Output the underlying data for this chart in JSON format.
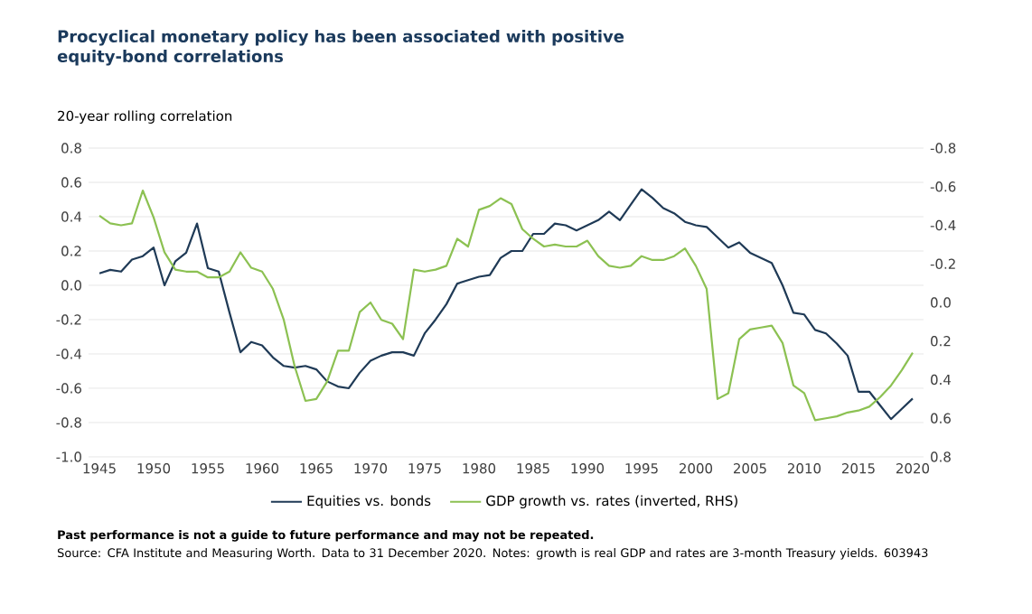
{
  "chart_data": {
    "type": "line",
    "title": "Procyclical monetary policy has been associated with positive equity-bond correlations",
    "ylabel": "20-year rolling correlation",
    "annotations": [
      "Past performance is not a guide to future performance and may not be repeated.",
      "Source: CFA Institute and Measuring Worth. Data to 31 December 2020. Notes: growth is real GDP and rates are 3-month Treasury yields. 603943"
    ],
    "x": [
      1945,
      1946,
      1947,
      1948,
      1949,
      1950,
      1951,
      1952,
      1953,
      1954,
      1955,
      1956,
      1957,
      1958,
      1959,
      1960,
      1961,
      1962,
      1963,
      1964,
      1965,
      1966,
      1967,
      1968,
      1969,
      1970,
      1971,
      1972,
      1973,
      1974,
      1975,
      1976,
      1977,
      1978,
      1979,
      1980,
      1981,
      1982,
      1983,
      1984,
      1985,
      1986,
      1987,
      1988,
      1989,
      1990,
      1991,
      1992,
      1993,
      1994,
      1995,
      1996,
      1997,
      1998,
      1999,
      2000,
      2001,
      2002,
      2003,
      2004,
      2005,
      2006,
      2007,
      2008,
      2009,
      2010,
      2011,
      2012,
      2013,
      2014,
      2015,
      2016,
      2017,
      2018,
      2019,
      2020
    ],
    "series": [
      {
        "name": "Equities vs. bonds",
        "color": "#1f3a56",
        "values": [
          0.07,
          0.09,
          0.08,
          0.15,
          0.17,
          0.22,
          0.0,
          0.14,
          0.19,
          0.36,
          0.1,
          0.08,
          -0.16,
          -0.39,
          -0.33,
          -0.35,
          -0.42,
          -0.47,
          -0.48,
          -0.47,
          -0.49,
          -0.56,
          -0.59,
          -0.6,
          -0.51,
          -0.44,
          -0.41,
          -0.39,
          -0.39,
          -0.41,
          -0.28,
          -0.2,
          -0.11,
          0.01,
          0.03,
          0.05,
          0.06,
          0.16,
          0.2,
          0.2,
          0.3,
          0.3,
          0.36,
          0.35,
          0.32,
          0.35,
          0.38,
          0.43,
          0.38,
          0.47,
          0.56,
          0.51,
          0.45,
          0.42,
          0.37,
          0.35,
          0.34,
          0.28,
          0.22,
          0.25,
          0.19,
          0.16,
          0.13,
          0.0,
          -0.16,
          -0.17,
          -0.26,
          -0.28,
          -0.34,
          -0.41,
          -0.62,
          -0.62,
          -0.7,
          -0.78,
          -0.72,
          -0.66
        ]
      },
      {
        "name": "GDP growth vs. rates (inverted, RHS)",
        "color": "#8cc152",
        "axis": "y2",
        "values": [
          -0.45,
          -0.41,
          -0.4,
          -0.41,
          -0.58,
          -0.44,
          -0.26,
          -0.17,
          -0.16,
          -0.16,
          -0.13,
          -0.13,
          -0.16,
          -0.26,
          -0.18,
          -0.16,
          -0.07,
          0.09,
          0.33,
          0.51,
          0.5,
          0.41,
          0.25,
          0.25,
          0.05,
          0.0,
          0.09,
          0.11,
          0.19,
          -0.17,
          -0.16,
          -0.17,
          -0.19,
          -0.33,
          -0.29,
          -0.48,
          -0.5,
          -0.54,
          -0.51,
          -0.38,
          -0.33,
          -0.29,
          -0.3,
          -0.29,
          -0.29,
          -0.32,
          -0.24,
          -0.19,
          -0.18,
          -0.19,
          -0.24,
          -0.22,
          -0.22,
          -0.24,
          -0.28,
          -0.19,
          -0.07,
          0.5,
          0.47,
          0.19,
          0.14,
          0.13,
          0.12,
          0.21,
          0.43,
          0.47,
          0.61,
          0.6,
          0.59,
          0.57,
          0.56,
          0.54,
          0.49,
          0.43,
          0.35,
          0.26
        ]
      }
    ],
    "xlim": [
      1944,
      2021
    ],
    "xticks": [
      1945,
      1950,
      1955,
      1960,
      1965,
      1970,
      1975,
      1980,
      1985,
      1990,
      1995,
      2000,
      2005,
      2010,
      2015,
      2020
    ],
    "ylim": [
      -1.0,
      0.8
    ],
    "yticks": [
      {
        "value": -1.0,
        "label": "-1.0"
      },
      -0.8,
      -0.6,
      -0.4,
      -0.2,
      {
        "value": 0,
        "label": "0.0"
      },
      0.2,
      0.4,
      0.6,
      0.8
    ],
    "y2lim": [
      0.8,
      -0.8
    ],
    "y2ticks": [
      0.8,
      0.6,
      0.4,
      0.2,
      {
        "value": 0,
        "label": "0.0"
      },
      -0.2,
      -0.4,
      -0.6,
      -0.8
    ],
    "grid": "y",
    "legend": "bottom",
    "marker": "none",
    "line_style": "solid"
  }
}
